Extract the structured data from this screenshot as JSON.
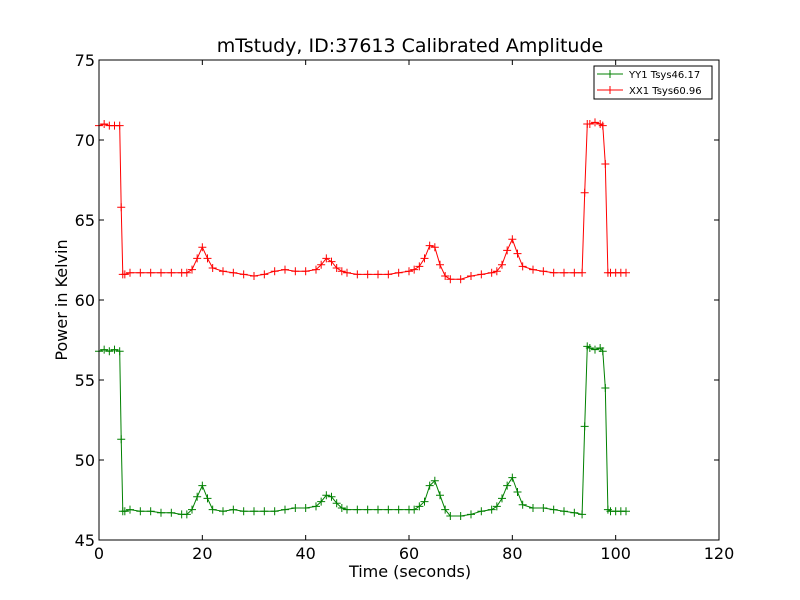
{
  "chart_data": {
    "type": "line",
    "title": "mTstudy, ID:37613 Calibrated Amplitude",
    "xlabel": "Time (seconds)",
    "ylabel": "Power in Kelvin",
    "xlim": [
      0,
      120
    ],
    "ylim": [
      45,
      75
    ],
    "xticks": [
      "0",
      "20",
      "40",
      "60",
      "80",
      "100",
      "120"
    ],
    "yticks": [
      "45",
      "50",
      "55",
      "60",
      "65",
      "70",
      "75"
    ],
    "grid": false,
    "legend_position": "top-right",
    "marker": "plus",
    "series": [
      {
        "name": "YY1 Tsys46.17",
        "color": "#008000",
        "x": [
          0,
          1,
          2,
          3,
          4,
          4.3,
          4.6,
          5,
          6,
          8,
          10,
          12,
          14,
          16,
          17,
          18,
          19,
          20,
          21,
          22,
          24,
          26,
          28,
          30,
          32,
          34,
          36,
          38,
          40,
          42,
          43,
          44,
          45,
          46,
          47,
          48,
          50,
          52,
          54,
          56,
          58,
          60,
          61,
          62,
          63,
          64,
          65,
          66,
          67,
          68,
          70,
          72,
          74,
          76,
          77,
          78,
          79,
          80,
          81,
          82,
          84,
          86,
          88,
          90,
          92,
          93.5,
          94,
          94.5,
          95,
          96,
          97,
          97.5,
          98,
          98.5,
          99,
          100,
          101,
          102
        ],
        "values": [
          56.8,
          56.9,
          56.8,
          56.9,
          56.8,
          51.3,
          46.8,
          46.8,
          46.9,
          46.8,
          46.8,
          46.7,
          46.7,
          46.6,
          46.6,
          46.9,
          47.7,
          48.4,
          47.6,
          46.9,
          46.8,
          46.9,
          46.8,
          46.8,
          46.8,
          46.8,
          46.9,
          47.0,
          47.0,
          47.1,
          47.4,
          47.8,
          47.7,
          47.3,
          47.0,
          46.9,
          46.9,
          46.9,
          46.9,
          46.9,
          46.9,
          46.9,
          46.9,
          47.1,
          47.4,
          48.4,
          48.7,
          47.8,
          46.9,
          46.5,
          46.5,
          46.6,
          46.8,
          46.9,
          47.1,
          47.6,
          48.4,
          48.9,
          48.0,
          47.2,
          47.0,
          47.0,
          46.9,
          46.8,
          46.7,
          46.6,
          52.1,
          57.1,
          57.0,
          56.9,
          57.0,
          56.8,
          54.5,
          46.9,
          46.8,
          46.8,
          46.8,
          46.8
        ]
      },
      {
        "name": "XX1 Tsys60.96",
        "color": "#ff0000",
        "x": [
          0,
          1,
          2,
          3,
          4,
          4.3,
          4.6,
          5,
          6,
          8,
          10,
          12,
          14,
          16,
          17,
          18,
          19,
          20,
          21,
          22,
          24,
          26,
          28,
          30,
          32,
          34,
          36,
          38,
          40,
          42,
          43,
          44,
          45,
          46,
          47,
          48,
          50,
          52,
          54,
          56,
          58,
          60,
          61,
          62,
          63,
          64,
          65,
          66,
          67,
          68,
          70,
          72,
          74,
          76,
          77,
          78,
          79,
          80,
          81,
          82,
          84,
          86,
          88,
          90,
          92,
          93.5,
          94,
          94.5,
          95,
          96,
          97,
          97.5,
          98,
          98.5,
          99,
          100,
          101,
          102
        ],
        "values": [
          70.9,
          71.0,
          70.9,
          70.9,
          70.9,
          65.8,
          61.6,
          61.6,
          61.7,
          61.7,
          61.7,
          61.7,
          61.7,
          61.7,
          61.7,
          61.9,
          62.6,
          63.3,
          62.6,
          62.0,
          61.8,
          61.7,
          61.6,
          61.5,
          61.6,
          61.8,
          61.9,
          61.8,
          61.8,
          61.9,
          62.2,
          62.6,
          62.4,
          62.0,
          61.8,
          61.7,
          61.6,
          61.6,
          61.6,
          61.6,
          61.7,
          61.8,
          61.9,
          62.1,
          62.6,
          63.4,
          63.3,
          62.2,
          61.5,
          61.3,
          61.3,
          61.5,
          61.6,
          61.7,
          61.8,
          62.2,
          63.1,
          63.8,
          62.9,
          62.1,
          61.9,
          61.8,
          61.7,
          61.7,
          61.7,
          61.7,
          66.7,
          71.0,
          71.0,
          71.1,
          71.0,
          70.9,
          68.5,
          61.7,
          61.7,
          61.7,
          61.7,
          61.7
        ]
      }
    ]
  }
}
